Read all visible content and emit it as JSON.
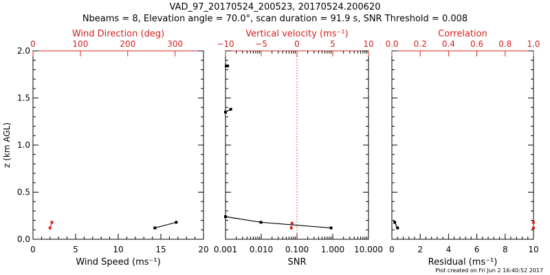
{
  "title": {
    "line1": "VAD_97_20170524_200523, 20170524.200620",
    "line2": "Nbeams = 8, Elevation angle = 70.0°, scan duration = 91.9 s, SNR Threshold = 0.008"
  },
  "footer": "Plot created on Fri Jun  2 16:40:52 2017",
  "colors": {
    "axis": "#000000",
    "secondary": "#d42020",
    "threshold_line": "#d42020"
  },
  "chart_data": [
    {
      "type": "line",
      "panel": "wind",
      "ylabel": "z (km AGL)",
      "ylim": [
        0,
        2.0
      ],
      "yticks": [
        "0.0",
        "0.5",
        "1.0",
        "1.5",
        "2.0"
      ],
      "bottom_axis": {
        "label": "Wind Speed (ms⁻¹)",
        "range": [
          0,
          20
        ],
        "ticks": [
          "0",
          "5",
          "10",
          "15",
          "20"
        ]
      },
      "top_axis": {
        "label": "Wind Direction (deg)",
        "range": [
          0,
          360
        ],
        "ticks": [
          "0",
          "100",
          "200",
          "300"
        ]
      },
      "series": [
        {
          "axis": "bottom",
          "color": "#000000",
          "x": [
            14.3,
            16.8
          ],
          "y": [
            0.12,
            0.18
          ]
        },
        {
          "axis": "top",
          "color": "#d42020",
          "x": [
            36,
            40
          ],
          "y": [
            0.12,
            0.18
          ]
        }
      ]
    },
    {
      "type": "line",
      "panel": "snr",
      "ylim": [
        0,
        2.0
      ],
      "bottom_axis": {
        "label": "SNR",
        "scale": "log",
        "range": [
          0.001,
          10
        ],
        "ticks": [
          "0.001",
          "0.010",
          "0.100",
          "1.000",
          "10.000"
        ]
      },
      "top_axis": {
        "label": "Vertical velocity (ms⁻¹)",
        "range": [
          -10,
          10
        ],
        "ticks": [
          "−10",
          "−5",
          "0",
          "5",
          "10"
        ]
      },
      "threshold_line": {
        "axis": "top",
        "value": 0
      },
      "series": [
        {
          "axis": "bottom",
          "color": "#000000",
          "x": [
            0.001,
            0.0098,
            0.9
          ],
          "y": [
            0.24,
            0.18,
            0.12
          ]
        },
        {
          "axis": "bottom",
          "color": "#000000",
          "x": [
            0.00105,
            0.00115
          ],
          "y": [
            1.84,
            1.84
          ]
        },
        {
          "axis": "bottom",
          "color": "#000000",
          "x": [
            0.001,
            0.0014
          ],
          "y": [
            1.35,
            1.38
          ]
        },
        {
          "axis": "top",
          "color": "#d42020",
          "x": [
            -0.8,
            -0.7
          ],
          "y": [
            0.12,
            0.17
          ]
        }
      ]
    },
    {
      "type": "line",
      "panel": "residual",
      "ylim": [
        0,
        2.0
      ],
      "bottom_axis": {
        "label": "Residual (ms⁻¹)",
        "range": [
          0,
          10
        ],
        "ticks": [
          "0",
          "2",
          "4",
          "6",
          "8",
          "10"
        ]
      },
      "top_axis": {
        "label": "Correlation",
        "range": [
          0,
          1.0
        ],
        "ticks": [
          "0.0",
          "0.2",
          "0.4",
          "0.6",
          "0.8",
          "1.0"
        ]
      },
      "series": [
        {
          "axis": "bottom",
          "color": "#000000",
          "x": [
            0.2,
            0.4
          ],
          "y": [
            0.18,
            0.12
          ]
        },
        {
          "axis": "top",
          "color": "#d42020",
          "x": [
            1.0,
            1.0
          ],
          "y": [
            0.12,
            0.18
          ]
        }
      ]
    }
  ]
}
